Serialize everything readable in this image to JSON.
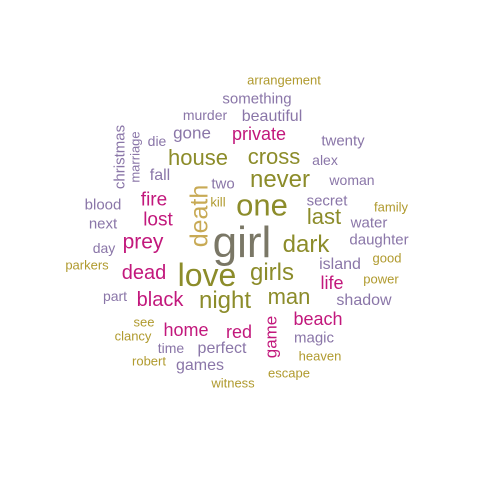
{
  "colors": {
    "olive": "#8c8c2a",
    "gold": "#b09a2e",
    "magenta": "#c2187c",
    "purple": "#8a76a8",
    "gray": "#7a7766",
    "tan": "#c8aa55"
  },
  "words": [
    {
      "text": "arrangement",
      "color": "gold"
    },
    {
      "text": "something",
      "color": "purple"
    },
    {
      "text": "murder",
      "color": "purple"
    },
    {
      "text": "beautiful",
      "color": "purple"
    },
    {
      "text": "christmas",
      "color": "purple"
    },
    {
      "text": "marriage",
      "color": "purple"
    },
    {
      "text": "die",
      "color": "purple"
    },
    {
      "text": "gone",
      "color": "purple"
    },
    {
      "text": "private",
      "color": "magenta"
    },
    {
      "text": "twenty",
      "color": "purple"
    },
    {
      "text": "house",
      "color": "olive"
    },
    {
      "text": "cross",
      "color": "olive"
    },
    {
      "text": "alex",
      "color": "purple"
    },
    {
      "text": "fall",
      "color": "purple"
    },
    {
      "text": "never",
      "color": "olive"
    },
    {
      "text": "woman",
      "color": "purple"
    },
    {
      "text": "two",
      "color": "purple"
    },
    {
      "text": "blood",
      "color": "purple"
    },
    {
      "text": "fire",
      "color": "magenta"
    },
    {
      "text": "death",
      "color": "tan"
    },
    {
      "text": "kill",
      "color": "gold"
    },
    {
      "text": "one",
      "color": "olive"
    },
    {
      "text": "secret",
      "color": "purple"
    },
    {
      "text": "family",
      "color": "gold"
    },
    {
      "text": "next",
      "color": "purple"
    },
    {
      "text": "lost",
      "color": "magenta"
    },
    {
      "text": "last",
      "color": "olive"
    },
    {
      "text": "water",
      "color": "purple"
    },
    {
      "text": "prey",
      "color": "magenta"
    },
    {
      "text": "girl",
      "color": "gray"
    },
    {
      "text": "dark",
      "color": "olive"
    },
    {
      "text": "daughter",
      "color": "purple"
    },
    {
      "text": "day",
      "color": "purple"
    },
    {
      "text": "good",
      "color": "gold"
    },
    {
      "text": "parkers",
      "color": "gold"
    },
    {
      "text": "dead",
      "color": "magenta"
    },
    {
      "text": "love",
      "color": "olive"
    },
    {
      "text": "girls",
      "color": "olive"
    },
    {
      "text": "island",
      "color": "purple"
    },
    {
      "text": "life",
      "color": "magenta"
    },
    {
      "text": "power",
      "color": "gold"
    },
    {
      "text": "part",
      "color": "purple"
    },
    {
      "text": "black",
      "color": "magenta"
    },
    {
      "text": "night",
      "color": "olive"
    },
    {
      "text": "man",
      "color": "olive"
    },
    {
      "text": "shadow",
      "color": "purple"
    },
    {
      "text": "see",
      "color": "gold"
    },
    {
      "text": "beach",
      "color": "magenta"
    },
    {
      "text": "clancy",
      "color": "gold"
    },
    {
      "text": "home",
      "color": "magenta"
    },
    {
      "text": "red",
      "color": "magenta"
    },
    {
      "text": "game",
      "color": "magenta"
    },
    {
      "text": "magic",
      "color": "purple"
    },
    {
      "text": "time",
      "color": "purple"
    },
    {
      "text": "perfect",
      "color": "purple"
    },
    {
      "text": "heaven",
      "color": "gold"
    },
    {
      "text": "robert",
      "color": "gold"
    },
    {
      "text": "games",
      "color": "purple"
    },
    {
      "text": "escape",
      "color": "gold"
    },
    {
      "text": "witness",
      "color": "gold"
    }
  ]
}
